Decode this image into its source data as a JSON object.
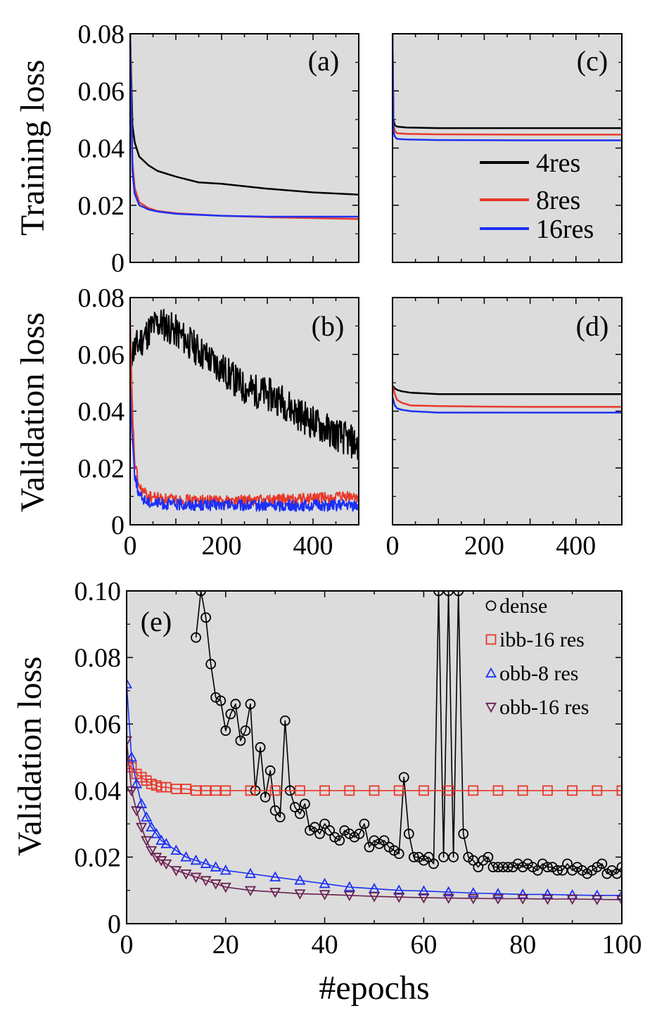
{
  "chart_data": [
    {
      "panel": "(a)",
      "type": "line",
      "ylabel": "Training loss",
      "xlim": [
        0,
        500
      ],
      "ylim": [
        0,
        0.08
      ],
      "yticks": [
        "0",
        "0.02",
        "0.04",
        "0.06",
        "0.08"
      ],
      "series": [
        {
          "name": "4res",
          "color": "#000000",
          "x": [
            0,
            5,
            10,
            20,
            40,
            60,
            100,
            150,
            200,
            300,
            400,
            500
          ],
          "y": [
            0.08,
            0.048,
            0.042,
            0.037,
            0.034,
            0.032,
            0.03,
            0.028,
            0.0275,
            0.0258,
            0.0245,
            0.0237
          ]
        },
        {
          "name": "8res",
          "color": "#e8392b",
          "x": [
            0,
            5,
            10,
            20,
            40,
            60,
            100,
            200,
            300,
            400,
            500
          ],
          "y": [
            0.08,
            0.035,
            0.026,
            0.021,
            0.019,
            0.018,
            0.0172,
            0.0163,
            0.0158,
            0.0155,
            0.0152
          ]
        },
        {
          "name": "16res",
          "color": "#1c30f5",
          "x": [
            0,
            5,
            10,
            20,
            40,
            60,
            100,
            200,
            300,
            400,
            500
          ],
          "y": [
            0.08,
            0.032,
            0.024,
            0.02,
            0.0185,
            0.0178,
            0.017,
            0.0163,
            0.016,
            0.016,
            0.016
          ]
        }
      ]
    },
    {
      "panel": "(b)",
      "type": "line",
      "ylabel": "Validation loss",
      "xlim": [
        0,
        500
      ],
      "ylim": [
        0,
        0.08
      ],
      "yticks": [
        "0",
        "0.02",
        "0.04",
        "0.06",
        "0.08"
      ],
      "xticks": [
        "0",
        "200",
        "400"
      ],
      "series": [
        {
          "name": "4res",
          "color": "#000000",
          "x": [
            0,
            10,
            30,
            50,
            70,
            100,
            130,
            160,
            200,
            250,
            300,
            330,
            360,
            400,
            450,
            500
          ],
          "y": [
            0.06,
            0.062,
            0.066,
            0.07,
            0.071,
            0.068,
            0.064,
            0.06,
            0.055,
            0.048,
            0.046,
            0.044,
            0.04,
            0.036,
            0.032,
            0.028
          ]
        },
        {
          "name": "8res",
          "color": "#e8392b",
          "x": [
            0,
            5,
            10,
            20,
            40,
            80,
            150,
            250,
            350,
            450,
            500
          ],
          "y": [
            0.072,
            0.04,
            0.022,
            0.013,
            0.01,
            0.009,
            0.0085,
            0.0085,
            0.009,
            0.0095,
            0.01
          ]
        },
        {
          "name": "16res",
          "color": "#1c30f5",
          "x": [
            0,
            5,
            10,
            20,
            40,
            80,
            150,
            250,
            350,
            450,
            500
          ],
          "y": [
            0.05,
            0.03,
            0.018,
            0.01,
            0.008,
            0.0072,
            0.007,
            0.0068,
            0.0068,
            0.0068,
            0.0068
          ]
        }
      ]
    },
    {
      "panel": "(c)",
      "type": "line",
      "xlim": [
        0,
        500
      ],
      "ylim": [
        0,
        0.08
      ],
      "legend": [
        "4res",
        "8res",
        "16res"
      ],
      "series": [
        {
          "name": "4res",
          "color": "#000000",
          "x": [
            0,
            2,
            5,
            10,
            30,
            100,
            300,
            500
          ],
          "y": [
            0.08,
            0.05,
            0.048,
            0.0475,
            0.0472,
            0.047,
            0.047,
            0.047
          ]
        },
        {
          "name": "8res",
          "color": "#e8392b",
          "x": [
            0,
            2,
            5,
            10,
            30,
            100,
            300,
            500
          ],
          "y": [
            0.08,
            0.048,
            0.046,
            0.0452,
            0.045,
            0.0448,
            0.0447,
            0.0447
          ]
        },
        {
          "name": "16res",
          "color": "#1c30f5",
          "x": [
            0,
            2,
            5,
            10,
            30,
            100,
            300,
            500
          ],
          "y": [
            0.08,
            0.046,
            0.044,
            0.0432,
            0.043,
            0.0428,
            0.0427,
            0.0427
          ]
        }
      ]
    },
    {
      "panel": "(d)",
      "type": "line",
      "xlim": [
        0,
        500
      ],
      "ylim": [
        0,
        0.08
      ],
      "xticks": [
        "0",
        "200",
        "400"
      ],
      "series": [
        {
          "name": "4res",
          "color": "#000000",
          "x": [
            0,
            5,
            10,
            20,
            40,
            100,
            200,
            300,
            400,
            500
          ],
          "y": [
            0.049,
            0.048,
            0.0475,
            0.047,
            0.0465,
            0.046,
            0.046,
            0.046,
            0.046,
            0.046
          ]
        },
        {
          "name": "8res",
          "color": "#e8392b",
          "x": [
            0,
            5,
            10,
            20,
            40,
            100,
            200,
            300,
            400,
            500
          ],
          "y": [
            0.049,
            0.046,
            0.044,
            0.043,
            0.042,
            0.0418,
            0.0416,
            0.0415,
            0.0415,
            0.0415
          ]
        },
        {
          "name": "16res",
          "color": "#1c30f5",
          "x": [
            0,
            5,
            10,
            20,
            40,
            100,
            200,
            300,
            400,
            500
          ],
          "y": [
            0.045,
            0.042,
            0.041,
            0.0405,
            0.04,
            0.0395,
            0.0395,
            0.0395,
            0.0395,
            0.0395
          ]
        }
      ]
    },
    {
      "panel": "(e)",
      "type": "line",
      "xlabel": "#epochs",
      "ylabel": "Validation loss",
      "xlim": [
        0,
        100
      ],
      "ylim": [
        0,
        0.1
      ],
      "xticks": [
        "0",
        "20",
        "40",
        "60",
        "80",
        "100"
      ],
      "yticks": [
        "0",
        "0.02",
        "0.04",
        "0.06",
        "0.08",
        "0.10"
      ],
      "series": [
        {
          "name": "dense",
          "color": "#000000",
          "marker": "circle",
          "x": [
            14,
            15,
            16,
            17,
            18,
            19,
            20,
            21,
            22,
            23,
            24,
            25,
            26,
            27,
            28,
            29,
            30,
            31,
            32,
            33,
            34,
            35,
            36,
            37,
            38,
            39,
            40,
            41,
            42,
            43,
            44,
            45,
            46,
            47,
            48,
            49,
            50,
            51,
            52,
            53,
            54,
            55,
            56,
            57,
            58,
            59,
            60,
            61,
            62,
            63,
            64,
            65,
            66,
            67,
            68,
            69,
            70,
            71,
            72,
            73,
            74,
            75,
            76,
            77,
            78,
            79,
            80,
            81,
            82,
            83,
            84,
            85,
            86,
            87,
            88,
            89,
            90,
            91,
            92,
            93,
            94,
            95,
            96,
            97,
            98,
            99,
            100
          ],
          "y": [
            0.086,
            0.1,
            0.092,
            0.078,
            0.068,
            0.067,
            0.058,
            0.063,
            0.066,
            0.055,
            0.058,
            0.066,
            0.04,
            0.053,
            0.038,
            0.046,
            0.034,
            0.032,
            0.061,
            0.04,
            0.035,
            0.033,
            0.036,
            0.028,
            0.029,
            0.027,
            0.03,
            0.028,
            0.026,
            0.025,
            0.028,
            0.027,
            0.026,
            0.027,
            0.03,
            0.023,
            0.025,
            0.024,
            0.025,
            0.023,
            0.022,
            0.021,
            0.044,
            0.027,
            0.02,
            0.02,
            0.019,
            0.02,
            0.018,
            0.1,
            0.02,
            0.1,
            0.02,
            0.1,
            0.027,
            0.02,
            0.019,
            0.017,
            0.019,
            0.02,
            0.017,
            0.017,
            0.017,
            0.017,
            0.017,
            0.018,
            0.017,
            0.018,
            0.017,
            0.016,
            0.018,
            0.017,
            0.017,
            0.016,
            0.016,
            0.018,
            0.016,
            0.017,
            0.016,
            0.015,
            0.016,
            0.017,
            0.018,
            0.015,
            0.016,
            0.015,
            0.017
          ]
        },
        {
          "name": "ibb-16 res",
          "color": "#e8392b",
          "marker": "square",
          "x": [
            0,
            1,
            2,
            3,
            4,
            5,
            6,
            7,
            8,
            10,
            12,
            14,
            16,
            18,
            20,
            25,
            30,
            35,
            40,
            45,
            50,
            55,
            60,
            65,
            70,
            75,
            80,
            85,
            90,
            95,
            100
          ],
          "y": [
            0.048,
            0.047,
            0.045,
            0.044,
            0.043,
            0.042,
            0.0415,
            0.041,
            0.041,
            0.0405,
            0.0405,
            0.04,
            0.04,
            0.04,
            0.04,
            0.04,
            0.04,
            0.04,
            0.04,
            0.04,
            0.04,
            0.04,
            0.04,
            0.04,
            0.04,
            0.04,
            0.04,
            0.04,
            0.04,
            0.04,
            0.04
          ]
        },
        {
          "name": "obb-8 res",
          "color": "#1c30f5",
          "marker": "triangle-up",
          "x": [
            0,
            1,
            2,
            3,
            4,
            5,
            6,
            7,
            8,
            10,
            12,
            14,
            16,
            18,
            20,
            25,
            30,
            35,
            40,
            45,
            50,
            55,
            60,
            65,
            70,
            75,
            80,
            85,
            90,
            95,
            100
          ],
          "y": [
            0.072,
            0.05,
            0.042,
            0.036,
            0.032,
            0.029,
            0.027,
            0.025,
            0.024,
            0.022,
            0.02,
            0.019,
            0.018,
            0.017,
            0.016,
            0.015,
            0.014,
            0.013,
            0.012,
            0.011,
            0.0105,
            0.01,
            0.0098,
            0.0095,
            0.0092,
            0.009,
            0.0088,
            0.0088,
            0.0086,
            0.0085,
            0.0085
          ]
        },
        {
          "name": "obb-16 res",
          "color": "#6a2050",
          "marker": "triangle-down",
          "x": [
            0,
            1,
            2,
            3,
            4,
            5,
            6,
            7,
            8,
            10,
            12,
            14,
            16,
            18,
            20,
            25,
            30,
            35,
            40,
            45,
            50,
            55,
            60,
            65,
            70,
            75,
            80,
            85,
            90,
            95,
            100
          ],
          "y": [
            0.055,
            0.04,
            0.034,
            0.029,
            0.025,
            0.022,
            0.02,
            0.019,
            0.018,
            0.016,
            0.015,
            0.014,
            0.013,
            0.012,
            0.011,
            0.01,
            0.0095,
            0.009,
            0.0088,
            0.0085,
            0.0082,
            0.008,
            0.0078,
            0.0077,
            0.0076,
            0.0075,
            0.0075,
            0.0074,
            0.0074,
            0.0073,
            0.0072
          ]
        }
      ]
    }
  ]
}
